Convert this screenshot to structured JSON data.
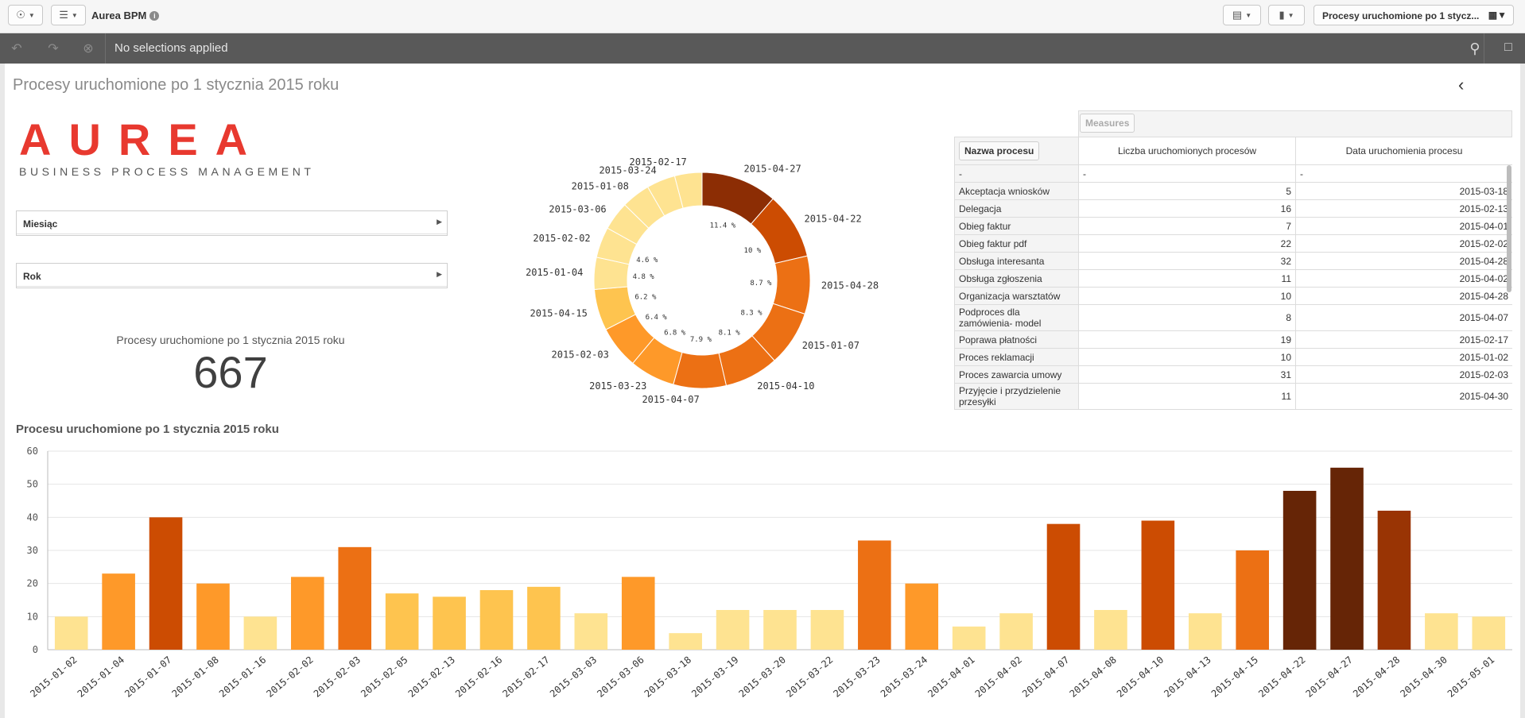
{
  "app": {
    "title": "Aurea BPM",
    "info_icon": "info-icon"
  },
  "topbar": {
    "sheet_selector": "Procesy uruchomione po 1 stycz..."
  },
  "selections": {
    "status": "No selections applied"
  },
  "sheet": {
    "title": "Procesy uruchomione po 1 stycznia 2015 roku"
  },
  "logo": {
    "main": "AUREA",
    "sub": "BUSINESS PROCESS MANAGEMENT"
  },
  "filters": [
    {
      "label": "Miesiąc"
    },
    {
      "label": "Rok"
    }
  ],
  "kpi": {
    "label": "Procesy uruchomione po 1 stycznia 2015 roku",
    "value": "667"
  },
  "table": {
    "measures_label": "Measures",
    "col_name": "Nazwa procesu",
    "col_count": "Liczba uruchomionych procesów",
    "col_date": "Data uruchomienia procesu",
    "dash": "-",
    "rows": [
      {
        "name": "Akceptacja wniosków",
        "count": "5",
        "date": "2015-03-18"
      },
      {
        "name": "Delegacja",
        "count": "16",
        "date": "2015-02-13"
      },
      {
        "name": "Obieg faktur",
        "count": "7",
        "date": "2015-04-01"
      },
      {
        "name": "Obieg faktur pdf",
        "count": "22",
        "date": "2015-02-02"
      },
      {
        "name": "Obsługa interesanta",
        "count": "32",
        "date": "2015-04-28"
      },
      {
        "name": "Obsługa zgłoszenia",
        "count": "11",
        "date": "2015-04-02"
      },
      {
        "name": "Organizacja warsztatów",
        "count": "10",
        "date": "2015-04-28"
      },
      {
        "name": "Podproces dla zamówienia- model",
        "count": "8",
        "date": "2015-04-07"
      },
      {
        "name": "Poprawa płatności",
        "count": "19",
        "date": "2015-02-17"
      },
      {
        "name": "Proces reklamacji",
        "count": "10",
        "date": "2015-01-02"
      },
      {
        "name": "Proces zawarcia umowy",
        "count": "31",
        "date": "2015-02-03"
      },
      {
        "name": "Przyjęcie i przydzielenie przesyłki",
        "count": "11",
        "date": "2015-04-30"
      }
    ]
  },
  "chart_data": [
    {
      "type": "pie",
      "categories": [
        "2015-04-27",
        "2015-04-22",
        "2015-04-28",
        "2015-01-07",
        "2015-04-10",
        "2015-04-07",
        "2015-03-23",
        "2015-02-03",
        "2015-04-15",
        "2015-01-04",
        "2015-02-02",
        "2015-03-06",
        "2015-01-08",
        "2015-03-24",
        "2015-02-17"
      ],
      "values": [
        11.4,
        10,
        8.7,
        8.3,
        8.1,
        7.9,
        6.8,
        6.4,
        6.2,
        4.8,
        4.6,
        4.3,
        4.3,
        4.3,
        4.1
      ],
      "value_labels": [
        "11.4 %",
        "10 %",
        "8.7 %",
        "8.3 %",
        "8.1 %",
        "7.9 %",
        "6.8 %",
        "6.4 %",
        "6.2 %",
        "4.8 %",
        "4.6 %",
        "",
        "",
        "",
        ""
      ],
      "colors": [
        "#8c2d04",
        "#cc4c02",
        "#ec7014",
        "#ec7014",
        "#ec7014",
        "#ec7014",
        "#fe9929",
        "#fe9929",
        "#fec44f",
        "#fee391",
        "#fee391",
        "#fee391",
        "#fee391",
        "#fee391",
        "#fee391"
      ]
    },
    {
      "type": "bar",
      "title": "Procesu uruchomione po 1 stycznia 2015 roku",
      "categories": [
        "2015-01-02",
        "2015-01-04",
        "2015-01-07",
        "2015-01-08",
        "2015-01-16",
        "2015-02-02",
        "2015-02-03",
        "2015-02-05",
        "2015-02-13",
        "2015-02-16",
        "2015-02-17",
        "2015-03-03",
        "2015-03-06",
        "2015-03-18",
        "2015-03-19",
        "2015-03-20",
        "2015-03-22",
        "2015-03-23",
        "2015-03-24",
        "2015-04-01",
        "2015-04-02",
        "2015-04-07",
        "2015-04-08",
        "2015-04-10",
        "2015-04-13",
        "2015-04-15",
        "2015-04-22",
        "2015-04-27",
        "2015-04-28",
        "2015-04-30",
        "2015-05-01"
      ],
      "values": [
        10,
        23,
        40,
        20,
        10,
        22,
        31,
        17,
        16,
        18,
        19,
        11,
        22,
        5,
        12,
        12,
        12,
        33,
        20,
        7,
        11,
        38,
        12,
        39,
        11,
        30,
        48,
        55,
        42,
        11,
        10
      ],
      "colors": [
        "#fee391",
        "#fe9929",
        "#cc4c02",
        "#fe9929",
        "#fee391",
        "#fe9929",
        "#ec7014",
        "#fec44f",
        "#fec44f",
        "#fec44f",
        "#fec44f",
        "#fee391",
        "#fe9929",
        "#fee391",
        "#fee391",
        "#fee391",
        "#fee391",
        "#ec7014",
        "#fe9929",
        "#fee391",
        "#fee391",
        "#cc4c02",
        "#fee391",
        "#cc4c02",
        "#fee391",
        "#ec7014",
        "#662506",
        "#662506",
        "#993404",
        "#fee391",
        "#fee391"
      ],
      "yticks": [
        "0",
        "10",
        "20",
        "30",
        "40",
        "50",
        "60"
      ],
      "ylim": [
        0,
        60
      ],
      "grid": true
    }
  ]
}
